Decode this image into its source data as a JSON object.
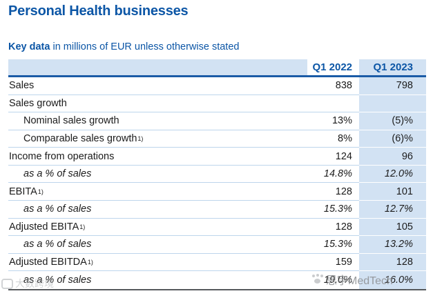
{
  "page": {
    "title": "Personal Health businesses",
    "subtitle_bold": "Key data",
    "subtitle_rest": " in millions of EUR unless otherwise stated"
  },
  "table": {
    "columns": [
      "Q1 2022",
      "Q1 2023"
    ],
    "rows": [
      {
        "label": "Sales",
        "sup": "",
        "indent": false,
        "italic": false,
        "q1_2022": "838",
        "q1_2023": "798"
      },
      {
        "label": "Sales growth",
        "sup": "",
        "indent": false,
        "italic": false,
        "q1_2022": "",
        "q1_2023": ""
      },
      {
        "label": "Nominal sales growth",
        "sup": "",
        "indent": true,
        "italic": false,
        "q1_2022": "13%",
        "q1_2023": "(5)%"
      },
      {
        "label": "Comparable sales growth",
        "sup": "1)",
        "indent": true,
        "italic": false,
        "q1_2022": "8%",
        "q1_2023": "(6)%"
      },
      {
        "label": "Income from operations",
        "sup": "",
        "indent": false,
        "italic": false,
        "q1_2022": "124",
        "q1_2023": "96"
      },
      {
        "label": "as a % of sales",
        "sup": "",
        "indent": true,
        "italic": true,
        "q1_2022": "14.8%",
        "q1_2023": "12.0%"
      },
      {
        "label": "EBITA",
        "sup": "1)",
        "indent": false,
        "italic": false,
        "q1_2022": "128",
        "q1_2023": "101"
      },
      {
        "label": "as a % of sales",
        "sup": "",
        "indent": true,
        "italic": true,
        "q1_2022": "15.3%",
        "q1_2023": "12.7%"
      },
      {
        "label": "Adjusted EBITA",
        "sup": "1)",
        "indent": false,
        "italic": false,
        "q1_2022": "128",
        "q1_2023": "105"
      },
      {
        "label": "as a % of sales",
        "sup": "",
        "indent": true,
        "italic": true,
        "q1_2022": "15.3%",
        "q1_2023": "13.2%"
      },
      {
        "label": "Adjusted EBITDA",
        "sup": "1)",
        "indent": false,
        "italic": false,
        "q1_2022": "159",
        "q1_2023": "128"
      },
      {
        "label": "as a % of sales",
        "sup": "",
        "indent": true,
        "italic": true,
        "q1_2022": "19.0%",
        "q1_2023": "16.0%"
      }
    ]
  },
  "watermarks": {
    "medtech": "思宇MedTech",
    "bottom_left": "大数跨境"
  },
  "colors": {
    "title_blue": "#0c56a6",
    "accent_blue": "#0c56a6",
    "light_blue_bg": "#d2e2f3",
    "row_divider": "#bdd5ec",
    "header_rule": "#1a5ba6",
    "bottom_rule": "#56595c",
    "body_text": "#1b1b1b",
    "watermark_gray": "#8d9093"
  }
}
